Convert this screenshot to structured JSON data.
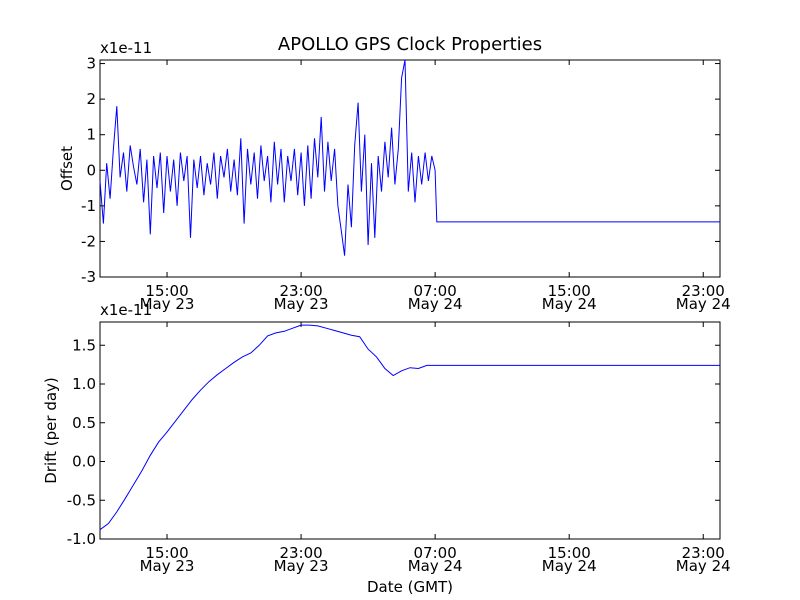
{
  "chart_data": [
    {
      "type": "line",
      "title": "APOLLO GPS Clock Properties",
      "ylabel": "Offset",
      "xlabel": "",
      "scale_label": "x1e-11",
      "x_unit": "hours since May 23 11:00 GMT",
      "xlim": [
        0,
        37
      ],
      "ylim": [
        -3,
        3.1
      ],
      "line_color": "#0000ff",
      "yticks": [
        {
          "value": -3,
          "label": "-3"
        },
        {
          "value": -2,
          "label": "-2"
        },
        {
          "value": -1,
          "label": "-1"
        },
        {
          "value": 0,
          "label": "0"
        },
        {
          "value": 1,
          "label": "1"
        },
        {
          "value": 2,
          "label": "2"
        },
        {
          "value": 3,
          "label": "3"
        }
      ],
      "xticks": [
        {
          "value": 4,
          "time": "15:00",
          "date": "May 23"
        },
        {
          "value": 12,
          "time": "23:00",
          "date": "May 23"
        },
        {
          "value": 20,
          "time": "07:00",
          "date": "May 24"
        },
        {
          "value": 28,
          "time": "15:00",
          "date": "May 24"
        },
        {
          "value": 36,
          "time": "23:00",
          "date": "May 24"
        }
      ],
      "series": [
        {
          "name": "Offset",
          "x": [
            0.0,
            0.2,
            0.4,
            0.6,
            0.8,
            1.0,
            1.2,
            1.4,
            1.6,
            1.8,
            2.0,
            2.2,
            2.4,
            2.6,
            2.8,
            3.0,
            3.2,
            3.4,
            3.6,
            3.8,
            4.0,
            4.2,
            4.4,
            4.6,
            4.8,
            5.0,
            5.2,
            5.4,
            5.6,
            5.8,
            6.0,
            6.2,
            6.4,
            6.6,
            6.8,
            7.0,
            7.2,
            7.4,
            7.6,
            7.8,
            8.0,
            8.2,
            8.4,
            8.6,
            8.8,
            9.0,
            9.2,
            9.4,
            9.6,
            9.8,
            10.0,
            10.2,
            10.4,
            10.6,
            10.8,
            11.0,
            11.2,
            11.4,
            11.6,
            11.8,
            12.0,
            12.2,
            12.4,
            12.6,
            12.8,
            13.0,
            13.2,
            13.4,
            13.6,
            13.8,
            14.0,
            14.2,
            14.4,
            14.6,
            14.8,
            15.0,
            15.2,
            15.4,
            15.6,
            15.8,
            16.0,
            16.2,
            16.4,
            16.6,
            16.8,
            17.0,
            17.2,
            17.4,
            17.6,
            17.8,
            18.0,
            18.2,
            18.4,
            18.6,
            18.8,
            19.0,
            19.2,
            19.4,
            19.6,
            19.8,
            20.0,
            20.1,
            37.0
          ],
          "values": [
            -0.3,
            -1.5,
            0.2,
            -0.8,
            0.6,
            1.8,
            -0.2,
            0.5,
            -0.6,
            0.7,
            0.1,
            -0.4,
            0.6,
            -0.9,
            0.3,
            -1.8,
            0.4,
            -0.5,
            0.5,
            -1.2,
            0.4,
            -0.6,
            0.3,
            -1.0,
            0.5,
            -0.3,
            0.4,
            -1.9,
            0.3,
            -0.5,
            0.4,
            -0.7,
            0.2,
            -0.4,
            0.5,
            -0.8,
            0.4,
            -0.2,
            0.6,
            -0.6,
            0.3,
            -0.7,
            0.9,
            -1.5,
            0.6,
            -0.4,
            0.5,
            -0.8,
            0.7,
            -0.3,
            0.4,
            -0.9,
            0.8,
            -0.4,
            0.6,
            -0.9,
            0.4,
            -0.3,
            0.6,
            -0.7,
            0.5,
            -1.0,
            0.7,
            -0.8,
            0.9,
            -0.2,
            1.5,
            -0.6,
            0.8,
            -0.3,
            0.6,
            -1.0,
            -1.7,
            -2.4,
            -0.4,
            -1.6,
            0.7,
            1.9,
            -0.6,
            1.0,
            -2.1,
            0.2,
            -1.9,
            0.4,
            -0.6,
            0.8,
            -0.2,
            1.2,
            -0.4,
            0.6,
            2.6,
            3.1,
            -0.6,
            0.5,
            -0.9,
            0.4,
            -0.4,
            0.5,
            -0.3,
            0.4,
            0.0,
            -1.45,
            -1.45
          ]
        }
      ]
    },
    {
      "type": "line",
      "title": "",
      "ylabel": "Drift (per day)",
      "xlabel": "Date (GMT)",
      "scale_label": "x1e-11",
      "x_unit": "hours since May 23 11:00 GMT",
      "xlim": [
        0,
        37
      ],
      "ylim": [
        -1.0,
        1.8
      ],
      "line_color": "#0000ff",
      "yticks": [
        {
          "value": -1.0,
          "label": "-1.0"
        },
        {
          "value": -0.5,
          "label": "-0.5"
        },
        {
          "value": 0.0,
          "label": "0.0"
        },
        {
          "value": 0.5,
          "label": "0.5"
        },
        {
          "value": 1.0,
          "label": "1.0"
        },
        {
          "value": 1.5,
          "label": "1.5"
        }
      ],
      "xticks": [
        {
          "value": 4,
          "time": "15:00",
          "date": "May 23"
        },
        {
          "value": 12,
          "time": "23:00",
          "date": "May 23"
        },
        {
          "value": 20,
          "time": "07:00",
          "date": "May 24"
        },
        {
          "value": 28,
          "time": "15:00",
          "date": "May 24"
        },
        {
          "value": 36,
          "time": "23:00",
          "date": "May 24"
        }
      ],
      "series": [
        {
          "name": "Drift",
          "x": [
            0.0,
            0.5,
            1.0,
            1.5,
            2.0,
            2.5,
            3.0,
            3.5,
            4.0,
            4.5,
            5.0,
            5.5,
            6.0,
            6.5,
            7.0,
            7.5,
            8.0,
            8.5,
            9.0,
            9.5,
            10.0,
            10.5,
            11.0,
            11.5,
            12.0,
            12.5,
            13.0,
            13.5,
            14.0,
            14.5,
            15.0,
            15.5,
            16.0,
            16.5,
            17.0,
            17.5,
            18.0,
            18.5,
            19.0,
            19.5,
            20.0,
            20.5,
            37.0
          ],
          "values": [
            -0.88,
            -0.8,
            -0.65,
            -0.48,
            -0.3,
            -0.12,
            0.08,
            0.25,
            0.38,
            0.52,
            0.66,
            0.8,
            0.92,
            1.03,
            1.12,
            1.2,
            1.28,
            1.35,
            1.4,
            1.5,
            1.62,
            1.66,
            1.68,
            1.72,
            1.76,
            1.76,
            1.75,
            1.72,
            1.69,
            1.66,
            1.63,
            1.61,
            1.45,
            1.35,
            1.2,
            1.11,
            1.17,
            1.21,
            1.2,
            1.24,
            1.24,
            1.24,
            1.24
          ]
        }
      ]
    }
  ]
}
